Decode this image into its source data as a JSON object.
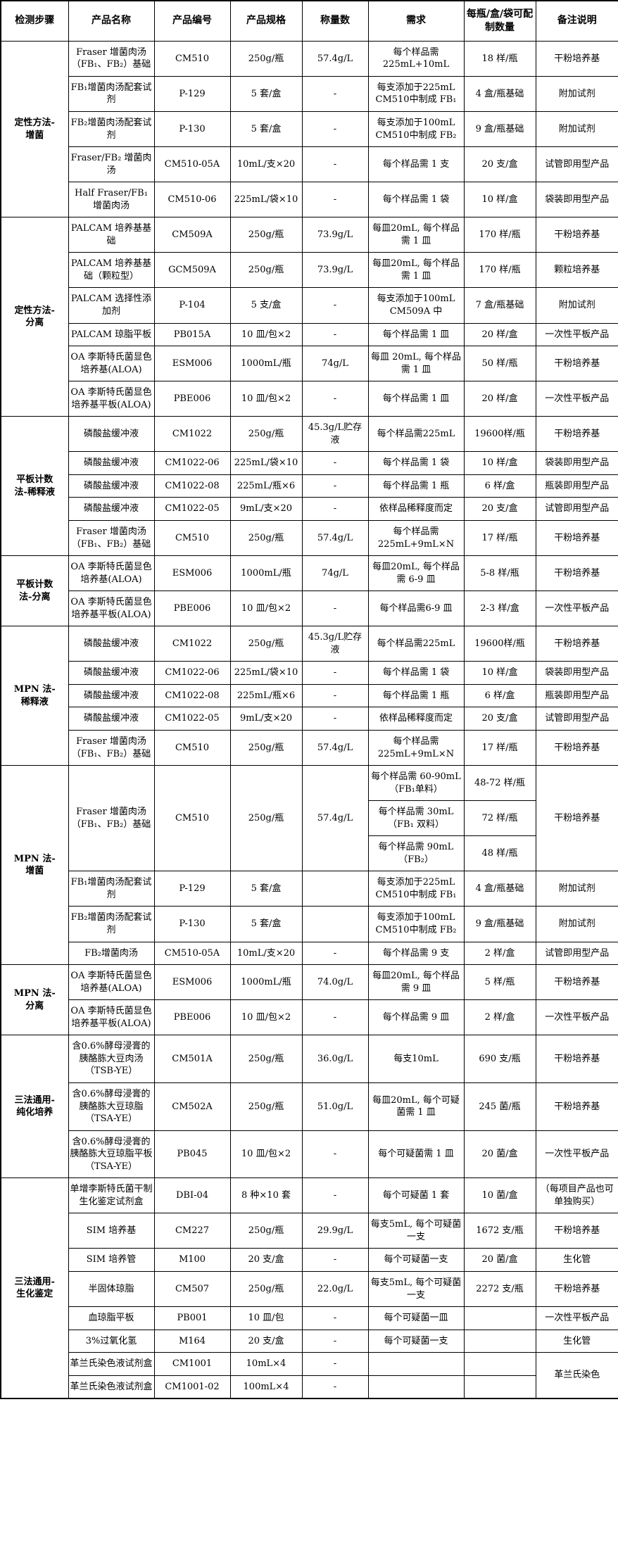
{
  "table": {
    "headers": [
      "检测步骤",
      "产品名称",
      "产品编号",
      "产品规格",
      "称量数",
      "需求",
      "每瓶/盒/袋可配制数量",
      "备注说明"
    ],
    "sections": [
      {
        "step": "定性方法-\n增菌",
        "rows": [
          [
            "Fraser 增菌肉汤（FB₁、FB₂）基础",
            "CM510",
            "250g/瓶",
            "57.4g/L",
            "每个样品需225mL+10mL",
            "18 样/瓶",
            "干粉培养基"
          ],
          [
            "FB₁增菌肉汤配套试剂",
            "P-129",
            "5 套/盒",
            "-",
            "每支添加于225mL CM510中制成 FB₁",
            "4 盒/瓶基础",
            "附加试剂"
          ],
          [
            "FB₂增菌肉汤配套试剂",
            "P-130",
            "5 套/盒",
            "-",
            "每支添加于100mL CM510中制成 FB₂",
            "9 盒/瓶基础",
            "附加试剂"
          ],
          [
            "Fraser/FB₂ 增菌肉汤",
            "CM510-05A",
            "10mL/支×20",
            "-",
            "每个样品需 1 支",
            "20 支/盒",
            "试管即用型产品"
          ],
          [
            "Half Fraser/FB₁ 增菌肉汤",
            "CM510-06",
            "225mL/袋×10",
            "-",
            "每个样品需 1 袋",
            "10 样/盒",
            "袋装即用型产品"
          ]
        ]
      },
      {
        "step": "定性方法-\n分离",
        "rows": [
          [
            "PALCAM 培养基基础",
            "CM509A",
            "250g/瓶",
            "73.9g/L",
            "每皿20mL, 每个样品需 1 皿",
            "170 样/瓶",
            "干粉培养基"
          ],
          [
            "PALCAM 培养基基础（颗粒型）",
            "GCM509A",
            "250g/瓶",
            "73.9g/L",
            "每皿20mL, 每个样品需 1 皿",
            "170 样/瓶",
            "颗粒培养基"
          ],
          [
            "PALCAM 选择性添加剂",
            "P-104",
            "5 支/盒",
            "-",
            "每支添加于100mL CM509A 中",
            "7 盒/瓶基础",
            "附加试剂"
          ],
          [
            "PALCAM 琼脂平板",
            "PB015A",
            "10 皿/包×2",
            "-",
            "每个样品需 1 皿",
            "20 样/盒",
            "一次性平板产品"
          ],
          [
            "OA 李斯特氏菌显色培养基(ALOA)",
            "ESM006",
            "1000mL/瓶",
            "74g/L",
            "每皿 20mL, 每个样品需 1 皿",
            "50 样/瓶",
            "干粉培养基"
          ],
          [
            "OA 李斯特氏菌显色培养基平板(ALOA)",
            "PBE006",
            "10 皿/包×2",
            "-",
            "每个样品需 1 皿",
            "20 样/盒",
            "一次性平板产品"
          ]
        ]
      },
      {
        "step": "平板计数\n法-稀释液",
        "rows": [
          [
            "磷酸盐缓冲液",
            "CM1022",
            "250g/瓶",
            "45.3g/L贮存液",
            "每个样品需225mL",
            "19600样/瓶",
            "干粉培养基"
          ],
          [
            "磷酸盐缓冲液",
            "CM1022-06",
            "225mL/袋×10",
            "-",
            "每个样品需 1 袋",
            "10 样/盒",
            "袋装即用型产品"
          ],
          [
            "磷酸盐缓冲液",
            "CM1022-08",
            "225mL/瓶×6",
            "-",
            "每个样品需 1 瓶",
            "6 样/盒",
            "瓶装即用型产品"
          ],
          [
            "磷酸盐缓冲液",
            "CM1022-05",
            "9mL/支×20",
            "-",
            "依样品稀释度而定",
            "20 支/盒",
            "试管即用型产品"
          ],
          [
            "Fraser 增菌肉汤（FB₁、FB₂）基础",
            "CM510",
            "250g/瓶",
            "57.4g/L",
            "每个样品需225mL+9mL×N",
            "17 样/瓶",
            "干粉培养基"
          ]
        ]
      },
      {
        "step": "平板计数\n法-分离",
        "rows": [
          [
            "OA 李斯特氏菌显色培养基(ALOA)",
            "ESM006",
            "1000mL/瓶",
            "74g/L",
            "每皿20mL, 每个样品需 6-9 皿",
            "5-8 样/瓶",
            "干粉培养基"
          ],
          [
            "OA 李斯特氏菌显色培养基平板(ALOA)",
            "PBE006",
            "10 皿/包×2",
            "-",
            "每个样品需6-9 皿",
            "2-3 样/盒",
            "一次性平板产品"
          ]
        ]
      },
      {
        "step": "MPN 法-\n稀释液",
        "rows": [
          [
            "磷酸盐缓冲液",
            "CM1022",
            "250g/瓶",
            "45.3g/L贮存液",
            "每个样品需225mL",
            "19600样/瓶",
            "干粉培养基"
          ],
          [
            "磷酸盐缓冲液",
            "CM1022-06",
            "225mL/袋×10",
            "-",
            "每个样品需 1 袋",
            "10 样/盒",
            "袋装即用型产品"
          ],
          [
            "磷酸盐缓冲液",
            "CM1022-08",
            "225mL/瓶×6",
            "-",
            "每个样品需 1 瓶",
            "6 样/盒",
            "瓶装即用型产品"
          ],
          [
            "磷酸盐缓冲液",
            "CM1022-05",
            "9mL/支×20",
            "-",
            "依样品稀释度而定",
            "20 支/盒",
            "试管即用型产品"
          ],
          [
            "Fraser 增菌肉汤（FB₁、FB₂）基础",
            "CM510",
            "250g/瓶",
            "57.4g/L",
            "每个样品需225mL+9mL×N",
            "17 样/瓶",
            "干粉培养基"
          ]
        ]
      },
      {
        "step": "MPN 法-\n增菌",
        "rows": [
          [
            {
              "t": "Fraser 增菌肉汤（FB₁、FB₂）基础",
              "rs": 3
            },
            {
              "t": "CM510",
              "rs": 3
            },
            {
              "t": "250g/瓶",
              "rs": 3
            },
            {
              "t": "57.4g/L",
              "rs": 3
            },
            "每个样品需 60-90mL（FB₁单料）",
            "48-72 样/瓶",
            {
              "t": "干粉培养基",
              "rs": 3
            }
          ],
          [
            null,
            null,
            null,
            null,
            "每个样品需 30mL（FB₁ 双料）",
            "72 样/瓶",
            null
          ],
          [
            null,
            null,
            null,
            null,
            "每个样品需 90mL（FB₂）",
            "48 样/瓶",
            null
          ],
          [
            "FB₁增菌肉汤配套试剂",
            "P-129",
            "5 套/盒",
            "",
            "每支添加于225mL CM510中制成 FB₁",
            "4 盒/瓶基础",
            "附加试剂"
          ],
          [
            "FB₂增菌肉汤配套试剂",
            "P-130",
            "5 套/盒",
            "",
            "每支添加于100mL CM510中制成 FB₂",
            "9 盒/瓶基础",
            "附加试剂"
          ],
          [
            "FB₂增菌肉汤",
            "CM510-05A",
            "10mL/支×20",
            "-",
            "每个样品需 9 支",
            "2 样/盒",
            "试管即用型产品"
          ]
        ]
      },
      {
        "step": "MPN 法-\n分离",
        "rows": [
          [
            "OA 李斯特氏菌显色培养基(ALOA)",
            "ESM006",
            "1000mL/瓶",
            "74.0g/L",
            "每皿20mL, 每个样品需 9 皿",
            "5 样/瓶",
            "干粉培养基"
          ],
          [
            "OA 李斯特氏菌显色培养基平板(ALOA)",
            "PBE006",
            "10 皿/包×2",
            "-",
            "每个样品需 9 皿",
            "2 样/盒",
            "一次性平板产品"
          ]
        ]
      },
      {
        "step": "三法通用-\n纯化培养",
        "rows": [
          [
            "含0.6%酵母浸膏的胰酪胨大豆肉汤（TSB-YE）",
            "CM501A",
            "250g/瓶",
            "36.0g/L",
            "每支10mL",
            "690 支/瓶",
            "干粉培养基"
          ],
          [
            "含0.6%酵母浸膏的胰酪胨大豆琼脂（TSA-YE）",
            "CM502A",
            "250g/瓶",
            "51.0g/L",
            "每皿20mL, 每个可疑菌需 1 皿",
            "245 菌/瓶",
            "干粉培养基"
          ],
          [
            "含0.6%酵母浸膏的胰酪胨大豆琼脂平板（TSA-YE）",
            "PB045",
            "10 皿/包×2",
            "-",
            "每个可疑菌需 1 皿",
            "20 菌/盒",
            "一次性平板产品"
          ]
        ]
      },
      {
        "step": "三法通用-\n生化鉴定",
        "rows": [
          [
            "单增李斯特氏菌干制生化鉴定试剂盒",
            "DBI-04",
            "8 种×10 套",
            "-",
            "每个可疑菌 1 套",
            "10 菌/盒",
            "（每项目产品也可单独购买）"
          ],
          [
            "SIM 培养基",
            "CM227",
            "250g/瓶",
            "29.9g/L",
            "每支5mL, 每个可疑菌一支",
            "1672 支/瓶",
            "干粉培养基"
          ],
          [
            "SIM 培养管",
            "M100",
            "20 支/盒",
            "-",
            "每个可疑菌一支",
            "20 菌/盒",
            "生化管"
          ],
          [
            "半固体琼脂",
            "CM507",
            "250g/瓶",
            "22.0g/L",
            "每支5mL, 每个可疑菌一支",
            "2272 支/瓶",
            "干粉培养基"
          ],
          [
            "血琼脂平板",
            "PB001",
            "10 皿/包",
            "-",
            "每个可疑菌一皿",
            "",
            "一次性平板产品"
          ],
          [
            "3%过氧化氢",
            "M164",
            "20 支/盒",
            "-",
            "每个可疑菌一支",
            "",
            "生化管"
          ],
          [
            "革兰氏染色液试剂盒",
            "CM1001",
            "10mL×4",
            "-",
            "",
            "",
            {
              "t": "革兰氏染色",
              "rs": 2
            }
          ],
          [
            "革兰氏染色液试剂盒",
            "CM1001-02",
            "100mL×4",
            "-",
            "",
            "",
            null
          ]
        ]
      }
    ]
  }
}
